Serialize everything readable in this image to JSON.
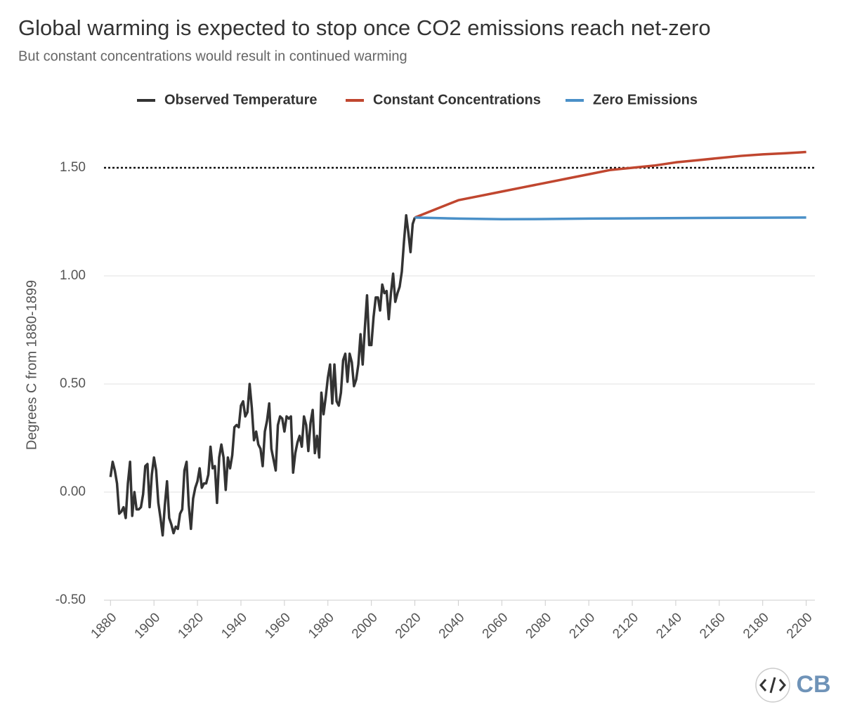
{
  "chart_data": {
    "type": "line",
    "title": "Global warming is expected to stop once CO2 emissions reach net-zero",
    "subtitle": "But constant concentrations would result in continued warming",
    "y_label": "Degrees C from 1880-1899",
    "logo": "CB",
    "xlim": [
      1877,
      2204
    ],
    "xticks": [
      1880,
      1900,
      1920,
      1940,
      1960,
      1980,
      2000,
      2020,
      2040,
      2060,
      2080,
      2100,
      2120,
      2140,
      2160,
      2180,
      2200
    ],
    "ylim": [
      -0.5,
      1.65
    ],
    "yticks": [
      {
        "value": -0.5,
        "label": "-0.50"
      },
      {
        "value": 0,
        "label": "0.00"
      },
      {
        "value": 0.5,
        "label": "0.50"
      },
      {
        "value": 1,
        "label": "1.00"
      },
      {
        "value": 1.5,
        "label": "1.50"
      }
    ],
    "grid": true,
    "reference_line": 1.5,
    "series": [
      {
        "name": "Observed Temperature",
        "color": "#333333",
        "x": [
          1880,
          1881,
          1882,
          1883,
          1884,
          1885,
          1886,
          1887,
          1888,
          1889,
          1890,
          1891,
          1892,
          1893,
          1894,
          1895,
          1896,
          1897,
          1898,
          1899,
          1900,
          1901,
          1902,
          1903,
          1904,
          1905,
          1906,
          1907,
          1908,
          1909,
          1910,
          1911,
          1912,
          1913,
          1914,
          1915,
          1916,
          1917,
          1918,
          1919,
          1920,
          1921,
          1922,
          1923,
          1924,
          1925,
          1926,
          1927,
          1928,
          1929,
          1930,
          1931,
          1932,
          1933,
          1934,
          1935,
          1936,
          1937,
          1938,
          1939,
          1940,
          1941,
          1942,
          1943,
          1944,
          1945,
          1946,
          1947,
          1948,
          1949,
          1950,
          1951,
          1952,
          1953,
          1954,
          1955,
          1956,
          1957,
          1958,
          1959,
          1960,
          1961,
          1962,
          1963,
          1964,
          1965,
          1966,
          1967,
          1968,
          1969,
          1970,
          1971,
          1972,
          1973,
          1974,
          1975,
          1976,
          1977,
          1978,
          1979,
          1980,
          1981,
          1982,
          1983,
          1984,
          1985,
          1986,
          1987,
          1988,
          1989,
          1990,
          1991,
          1992,
          1993,
          1994,
          1995,
          1996,
          1997,
          1998,
          1999,
          2000,
          2001,
          2002,
          2003,
          2004,
          2005,
          2006,
          2007,
          2008,
          2009,
          2010,
          2011,
          2012,
          2013,
          2014,
          2015,
          2016,
          2017,
          2018,
          2019,
          2020
        ],
        "values": [
          0.07,
          0.14,
          0.1,
          0.04,
          -0.1,
          -0.09,
          -0.07,
          -0.12,
          0.04,
          0.14,
          -0.11,
          0.0,
          -0.08,
          -0.08,
          -0.07,
          -0.01,
          0.12,
          0.13,
          -0.07,
          0.08,
          0.16,
          0.1,
          -0.05,
          -0.12,
          -0.2,
          -0.06,
          0.05,
          -0.12,
          -0.15,
          -0.19,
          -0.16,
          -0.17,
          -0.1,
          -0.08,
          0.1,
          0.14,
          -0.06,
          -0.17,
          -0.03,
          0.02,
          0.05,
          0.11,
          0.02,
          0.04,
          0.04,
          0.08,
          0.21,
          0.11,
          0.12,
          -0.05,
          0.16,
          0.22,
          0.16,
          0.01,
          0.16,
          0.11,
          0.17,
          0.3,
          0.31,
          0.3,
          0.4,
          0.42,
          0.35,
          0.37,
          0.5,
          0.39,
          0.24,
          0.28,
          0.22,
          0.2,
          0.12,
          0.28,
          0.33,
          0.41,
          0.2,
          0.15,
          0.1,
          0.31,
          0.35,
          0.34,
          0.28,
          0.35,
          0.34,
          0.35,
          0.09,
          0.18,
          0.23,
          0.26,
          0.21,
          0.35,
          0.31,
          0.19,
          0.32,
          0.38,
          0.18,
          0.26,
          0.16,
          0.46,
          0.36,
          0.44,
          0.53,
          0.59,
          0.41,
          0.59,
          0.42,
          0.4,
          0.46,
          0.61,
          0.64,
          0.51,
          0.64,
          0.6,
          0.49,
          0.52,
          0.59,
          0.73,
          0.59,
          0.76,
          0.91,
          0.68,
          0.68,
          0.81,
          0.9,
          0.9,
          0.84,
          0.96,
          0.92,
          0.93,
          0.8,
          0.92,
          1.01,
          0.88,
          0.92,
          0.95,
          1.02,
          1.16,
          1.28,
          1.2,
          1.11,
          1.24,
          1.27
        ]
      },
      {
        "name": "Constant Concentrations",
        "color": "#c0462f",
        "x": [
          2020,
          2030,
          2040,
          2050,
          2060,
          2070,
          2080,
          2090,
          2100,
          2110,
          2120,
          2130,
          2140,
          2150,
          2160,
          2170,
          2180,
          2190,
          2200
        ],
        "values": [
          1.27,
          1.31,
          1.35,
          1.37,
          1.39,
          1.41,
          1.43,
          1.45,
          1.47,
          1.49,
          1.5,
          1.51,
          1.525,
          1.535,
          1.545,
          1.555,
          1.562,
          1.567,
          1.573
        ]
      },
      {
        "name": "Zero Emissions",
        "color": "#4a90c8",
        "x": [
          2020,
          2040,
          2060,
          2080,
          2100,
          2150,
          2200
        ],
        "values": [
          1.27,
          1.265,
          1.262,
          1.263,
          1.265,
          1.268,
          1.27
        ]
      }
    ]
  }
}
